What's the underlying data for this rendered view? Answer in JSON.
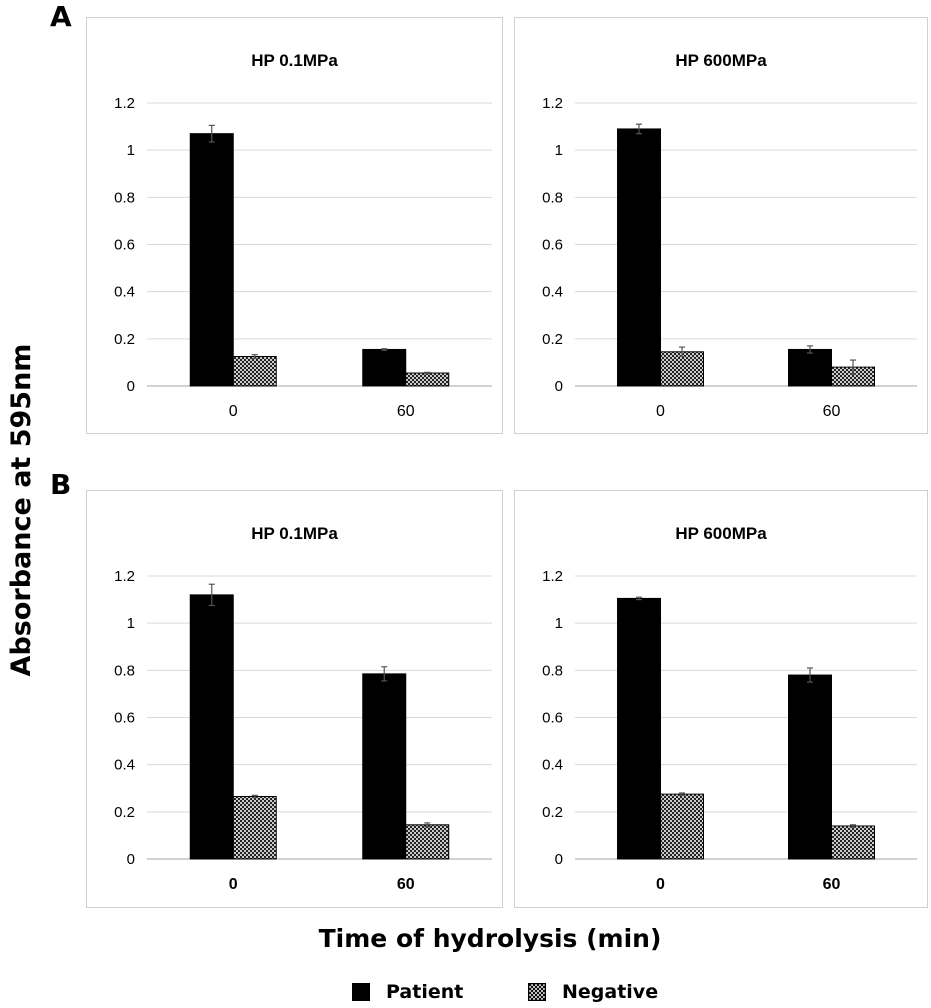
{
  "panels": [
    {
      "letter": "A"
    },
    {
      "letter": "B"
    }
  ],
  "y_axis_title": "Absorbance at 595nm",
  "x_axis_title": "Time of hydrolysis (min)",
  "legend": [
    {
      "label": "Patient",
      "color": "#000000",
      "pattern": "solid"
    },
    {
      "label": "Negative",
      "color": "#000000",
      "pattern": "crosshatch"
    }
  ],
  "chart_data": [
    {
      "type": "bar",
      "panel": "A",
      "title": "HP 0.1MPa",
      "categories": [
        "0",
        "60"
      ],
      "category_label_bold": false,
      "ylim": [
        0,
        1.2
      ],
      "yticks": [
        "0",
        "0.2",
        "0.4",
        "0.6",
        "0.8",
        "1",
        "1.2"
      ],
      "grid": true,
      "series": [
        {
          "name": "Patient",
          "values": [
            1.07,
            0.155
          ],
          "errors": [
            0.035,
            0.003
          ]
        },
        {
          "name": "Negative",
          "values": [
            0.125,
            0.055
          ],
          "errors": [
            0.008,
            0.003
          ]
        }
      ]
    },
    {
      "type": "bar",
      "panel": "A",
      "title": "HP 600MPa",
      "categories": [
        "0",
        "60"
      ],
      "category_label_bold": false,
      "ylim": [
        0,
        1.2
      ],
      "yticks": [
        "0",
        "0.2",
        "0.4",
        "0.6",
        "0.8",
        "1",
        "1.2"
      ],
      "grid": true,
      "series": [
        {
          "name": "Patient",
          "values": [
            1.09,
            0.155
          ],
          "errors": [
            0.02,
            0.015
          ]
        },
        {
          "name": "Negative",
          "values": [
            0.145,
            0.08
          ],
          "errors": [
            0.02,
            0.03
          ]
        }
      ]
    },
    {
      "type": "bar",
      "panel": "B",
      "title": "HP 0.1MPa",
      "categories": [
        "0",
        "60"
      ],
      "category_label_bold": true,
      "ylim": [
        0,
        1.2
      ],
      "yticks": [
        "0",
        "0.2",
        "0.4",
        "0.6",
        "0.8",
        "1",
        "1.2"
      ],
      "grid": true,
      "series": [
        {
          "name": "Patient",
          "values": [
            1.12,
            0.785
          ],
          "errors": [
            0.045,
            0.03
          ]
        },
        {
          "name": "Negative",
          "values": [
            0.265,
            0.145
          ],
          "errors": [
            0.005,
            0.008
          ]
        }
      ]
    },
    {
      "type": "bar",
      "panel": "B",
      "title": "HP 600MPa",
      "categories": [
        "0",
        "60"
      ],
      "category_label_bold": true,
      "ylim": [
        0,
        1.2
      ],
      "yticks": [
        "0",
        "0.2",
        "0.4",
        "0.6",
        "0.8",
        "1",
        "1.2"
      ],
      "grid": true,
      "series": [
        {
          "name": "Patient",
          "values": [
            1.105,
            0.78
          ],
          "errors": [
            0.005,
            0.03
          ]
        },
        {
          "name": "Negative",
          "values": [
            0.275,
            0.14
          ],
          "errors": [
            0.005,
            0.005
          ]
        }
      ]
    }
  ]
}
